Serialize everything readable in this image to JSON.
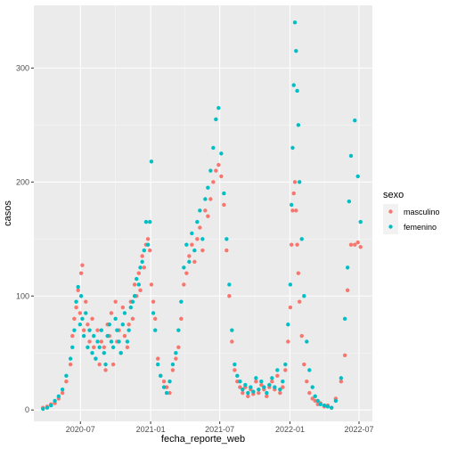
{
  "chart_data": {
    "type": "scatter",
    "xlabel": "fecha_reporte_web",
    "ylabel": "casos",
    "x_ticks": [
      "2020-07",
      "2021-01",
      "2021-07",
      "2022-01",
      "2022-07"
    ],
    "y_ticks": [
      0,
      100,
      200,
      300
    ],
    "xlim": [
      "2020-03-01",
      "2022-08-05"
    ],
    "ylim": [
      -10,
      355
    ],
    "grid": true,
    "legend": {
      "title": "sexo",
      "position": "right",
      "entries": [
        "masculino",
        "femenino"
      ]
    },
    "series": [
      {
        "name": "masculino",
        "color": "#F8766D",
        "points": [
          [
            "2020-03-25",
            2
          ],
          [
            "2020-04-05",
            3
          ],
          [
            "2020-04-15",
            5
          ],
          [
            "2020-04-25",
            6
          ],
          [
            "2020-05-05",
            10
          ],
          [
            "2020-05-15",
            15
          ],
          [
            "2020-05-25",
            25
          ],
          [
            "2020-06-05",
            40
          ],
          [
            "2020-06-10",
            65
          ],
          [
            "2020-06-15",
            80
          ],
          [
            "2020-06-20",
            90
          ],
          [
            "2020-06-25",
            105
          ],
          [
            "2020-06-30",
            85
          ],
          [
            "2020-07-03",
            120
          ],
          [
            "2020-07-06",
            127
          ],
          [
            "2020-07-10",
            70
          ],
          [
            "2020-07-15",
            95
          ],
          [
            "2020-07-20",
            75
          ],
          [
            "2020-07-25",
            60
          ],
          [
            "2020-08-01",
            80
          ],
          [
            "2020-08-05",
            55
          ],
          [
            "2020-08-10",
            45
          ],
          [
            "2020-08-15",
            70
          ],
          [
            "2020-08-20",
            40
          ],
          [
            "2020-08-25",
            60
          ],
          [
            "2020-09-01",
            55
          ],
          [
            "2020-09-05",
            35
          ],
          [
            "2020-09-10",
            75
          ],
          [
            "2020-09-15",
            65
          ],
          [
            "2020-09-20",
            85
          ],
          [
            "2020-09-25",
            40
          ],
          [
            "2020-10-01",
            95
          ],
          [
            "2020-10-05",
            60
          ],
          [
            "2020-10-10",
            70
          ],
          [
            "2020-10-15",
            50
          ],
          [
            "2020-10-20",
            90
          ],
          [
            "2020-10-25",
            65
          ],
          [
            "2020-11-01",
            55
          ],
          [
            "2020-11-05",
            75
          ],
          [
            "2020-11-10",
            95
          ],
          [
            "2020-11-15",
            80
          ],
          [
            "2020-11-20",
            110
          ],
          [
            "2020-11-25",
            100
          ],
          [
            "2020-12-01",
            120
          ],
          [
            "2020-12-05",
            105
          ],
          [
            "2020-12-10",
            135
          ],
          [
            "2020-12-15",
            125
          ],
          [
            "2020-12-20",
            145
          ],
          [
            "2020-12-25",
            150
          ],
          [
            "2020-12-30",
            140
          ],
          [
            "2021-01-03",
            110
          ],
          [
            "2021-01-08",
            95
          ],
          [
            "2021-01-13",
            80
          ],
          [
            "2021-01-20",
            45
          ],
          [
            "2021-01-27",
            30
          ],
          [
            "2021-02-05",
            25
          ],
          [
            "2021-02-12",
            20
          ],
          [
            "2021-02-20",
            15
          ],
          [
            "2021-02-28",
            35
          ],
          [
            "2021-03-08",
            45
          ],
          [
            "2021-03-15",
            55
          ],
          [
            "2021-03-22",
            80
          ],
          [
            "2021-03-29",
            110
          ],
          [
            "2021-04-05",
            120
          ],
          [
            "2021-04-12",
            135
          ],
          [
            "2021-04-19",
            145
          ],
          [
            "2021-04-26",
            130
          ],
          [
            "2021-05-03",
            150
          ],
          [
            "2021-05-10",
            160
          ],
          [
            "2021-05-17",
            140
          ],
          [
            "2021-05-24",
            175
          ],
          [
            "2021-05-31",
            170
          ],
          [
            "2021-06-07",
            185
          ],
          [
            "2021-06-14",
            200
          ],
          [
            "2021-06-21",
            210
          ],
          [
            "2021-06-28",
            215
          ],
          [
            "2021-07-05",
            205
          ],
          [
            "2021-07-12",
            180
          ],
          [
            "2021-07-19",
            140
          ],
          [
            "2021-07-26",
            100
          ],
          [
            "2021-08-02",
            60
          ],
          [
            "2021-08-09",
            35
          ],
          [
            "2021-08-16",
            25
          ],
          [
            "2021-08-23",
            20
          ],
          [
            "2021-08-30",
            15
          ],
          [
            "2021-09-06",
            20
          ],
          [
            "2021-09-13",
            12
          ],
          [
            "2021-09-20",
            18
          ],
          [
            "2021-09-27",
            14
          ],
          [
            "2021-10-04",
            25
          ],
          [
            "2021-10-11",
            15
          ],
          [
            "2021-10-18",
            22
          ],
          [
            "2021-10-25",
            18
          ],
          [
            "2021-11-01",
            12
          ],
          [
            "2021-11-08",
            20
          ],
          [
            "2021-11-15",
            25
          ],
          [
            "2021-11-22",
            18
          ],
          [
            "2021-11-29",
            30
          ],
          [
            "2021-12-06",
            15
          ],
          [
            "2021-12-13",
            20
          ],
          [
            "2021-12-20",
            35
          ],
          [
            "2021-12-27",
            60
          ],
          [
            "2022-01-02",
            90
          ],
          [
            "2022-01-05",
            145
          ],
          [
            "2022-01-08",
            175
          ],
          [
            "2022-01-11",
            190
          ],
          [
            "2022-01-14",
            200
          ],
          [
            "2022-01-17",
            175
          ],
          [
            "2022-01-20",
            145
          ],
          [
            "2022-01-23",
            120
          ],
          [
            "2022-01-26",
            95
          ],
          [
            "2022-02-01",
            65
          ],
          [
            "2022-02-07",
            40
          ],
          [
            "2022-02-14",
            25
          ],
          [
            "2022-02-21",
            15
          ],
          [
            "2022-03-01",
            10
          ],
          [
            "2022-03-08",
            8
          ],
          [
            "2022-03-15",
            5
          ],
          [
            "2022-03-22",
            6
          ],
          [
            "2022-04-01",
            3
          ],
          [
            "2022-04-10",
            4
          ],
          [
            "2022-04-20",
            2
          ],
          [
            "2022-05-01",
            10
          ],
          [
            "2022-05-15",
            25
          ],
          [
            "2022-05-25",
            48
          ],
          [
            "2022-06-01",
            105
          ],
          [
            "2022-06-10",
            145
          ],
          [
            "2022-06-20",
            145
          ],
          [
            "2022-06-28",
            147
          ],
          [
            "2022-07-05",
            143
          ]
        ]
      },
      {
        "name": "femenino",
        "color": "#00BFC4",
        "points": [
          [
            "2020-03-25",
            1
          ],
          [
            "2020-04-05",
            2
          ],
          [
            "2020-04-15",
            4
          ],
          [
            "2020-04-25",
            8
          ],
          [
            "2020-05-05",
            12
          ],
          [
            "2020-05-15",
            18
          ],
          [
            "2020-05-25",
            30
          ],
          [
            "2020-06-05",
            45
          ],
          [
            "2020-06-10",
            55
          ],
          [
            "2020-06-15",
            70
          ],
          [
            "2020-06-20",
            95
          ],
          [
            "2020-06-25",
            108
          ],
          [
            "2020-06-30",
            75
          ],
          [
            "2020-07-03",
            100
          ],
          [
            "2020-07-06",
            80
          ],
          [
            "2020-07-10",
            65
          ],
          [
            "2020-07-15",
            85
          ],
          [
            "2020-07-20",
            55
          ],
          [
            "2020-07-25",
            70
          ],
          [
            "2020-08-01",
            50
          ],
          [
            "2020-08-05",
            65
          ],
          [
            "2020-08-10",
            45
          ],
          [
            "2020-08-15",
            60
          ],
          [
            "2020-08-20",
            55
          ],
          [
            "2020-08-25",
            70
          ],
          [
            "2020-09-01",
            50
          ],
          [
            "2020-09-05",
            40
          ],
          [
            "2020-09-10",
            65
          ],
          [
            "2020-09-15",
            75
          ],
          [
            "2020-09-20",
            60
          ],
          [
            "2020-09-25",
            55
          ],
          [
            "2020-10-01",
            80
          ],
          [
            "2020-10-05",
            70
          ],
          [
            "2020-10-10",
            60
          ],
          [
            "2020-10-15",
            50
          ],
          [
            "2020-10-20",
            75
          ],
          [
            "2020-10-25",
            85
          ],
          [
            "2020-11-01",
            60
          ],
          [
            "2020-11-05",
            70
          ],
          [
            "2020-11-10",
            90
          ],
          [
            "2020-11-15",
            95
          ],
          [
            "2020-11-20",
            100
          ],
          [
            "2020-11-25",
            115
          ],
          [
            "2020-12-01",
            110
          ],
          [
            "2020-12-05",
            125
          ],
          [
            "2020-12-10",
            130
          ],
          [
            "2020-12-15",
            140
          ],
          [
            "2020-12-20",
            165
          ],
          [
            "2020-12-25",
            145
          ],
          [
            "2020-12-30",
            165
          ],
          [
            "2021-01-03",
            218
          ],
          [
            "2021-01-08",
            85
          ],
          [
            "2021-01-13",
            70
          ],
          [
            "2021-01-20",
            40
          ],
          [
            "2021-01-27",
            30
          ],
          [
            "2021-02-05",
            20
          ],
          [
            "2021-02-12",
            15
          ],
          [
            "2021-02-20",
            25
          ],
          [
            "2021-02-28",
            40
          ],
          [
            "2021-03-08",
            50
          ],
          [
            "2021-03-15",
            70
          ],
          [
            "2021-03-22",
            95
          ],
          [
            "2021-03-29",
            125
          ],
          [
            "2021-04-05",
            145
          ],
          [
            "2021-04-12",
            130
          ],
          [
            "2021-04-19",
            155
          ],
          [
            "2021-04-26",
            140
          ],
          [
            "2021-05-03",
            165
          ],
          [
            "2021-05-10",
            175
          ],
          [
            "2021-05-17",
            150
          ],
          [
            "2021-05-24",
            185
          ],
          [
            "2021-05-31",
            195
          ],
          [
            "2021-06-07",
            210
          ],
          [
            "2021-06-14",
            230
          ],
          [
            "2021-06-21",
            255
          ],
          [
            "2021-06-28",
            265
          ],
          [
            "2021-07-05",
            225
          ],
          [
            "2021-07-12",
            190
          ],
          [
            "2021-07-19",
            150
          ],
          [
            "2021-07-26",
            110
          ],
          [
            "2021-08-02",
            70
          ],
          [
            "2021-08-09",
            40
          ],
          [
            "2021-08-16",
            30
          ],
          [
            "2021-08-23",
            25
          ],
          [
            "2021-08-30",
            18
          ],
          [
            "2021-09-06",
            22
          ],
          [
            "2021-09-13",
            15
          ],
          [
            "2021-09-20",
            20
          ],
          [
            "2021-09-27",
            16
          ],
          [
            "2021-10-04",
            28
          ],
          [
            "2021-10-11",
            18
          ],
          [
            "2021-10-18",
            25
          ],
          [
            "2021-10-25",
            20
          ],
          [
            "2021-11-01",
            15
          ],
          [
            "2021-11-08",
            22
          ],
          [
            "2021-11-15",
            28
          ],
          [
            "2021-11-22",
            20
          ],
          [
            "2021-11-29",
            35
          ],
          [
            "2021-12-06",
            18
          ],
          [
            "2021-12-13",
            25
          ],
          [
            "2021-12-20",
            40
          ],
          [
            "2021-12-27",
            75
          ],
          [
            "2022-01-02",
            110
          ],
          [
            "2022-01-05",
            180
          ],
          [
            "2022-01-08",
            230
          ],
          [
            "2022-01-11",
            285
          ],
          [
            "2022-01-14",
            340
          ],
          [
            "2022-01-17",
            315
          ],
          [
            "2022-01-20",
            280
          ],
          [
            "2022-01-23",
            250
          ],
          [
            "2022-01-26",
            200
          ],
          [
            "2022-02-01",
            150
          ],
          [
            "2022-02-07",
            100
          ],
          [
            "2022-02-14",
            60
          ],
          [
            "2022-02-21",
            35
          ],
          [
            "2022-03-01",
            20
          ],
          [
            "2022-03-08",
            12
          ],
          [
            "2022-03-15",
            8
          ],
          [
            "2022-03-22",
            5
          ],
          [
            "2022-04-01",
            4
          ],
          [
            "2022-04-10",
            3
          ],
          [
            "2022-04-20",
            2
          ],
          [
            "2022-05-01",
            8
          ],
          [
            "2022-05-15",
            28
          ],
          [
            "2022-05-25",
            80
          ],
          [
            "2022-06-01",
            125
          ],
          [
            "2022-06-05",
            183
          ],
          [
            "2022-06-10",
            223
          ],
          [
            "2022-06-20",
            254
          ],
          [
            "2022-06-28",
            205
          ],
          [
            "2022-07-05",
            165
          ]
        ]
      }
    ]
  }
}
